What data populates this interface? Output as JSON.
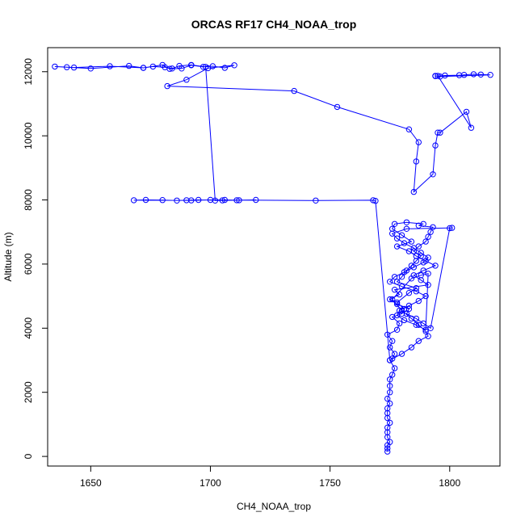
{
  "chart_data": {
    "type": "scatter",
    "title": "ORCAS RF17 CH4_NOAA_trop",
    "xlabel": "CH4_NOAA_trop",
    "ylabel": "Altitude (m)",
    "xlim": [
      1632,
      1821
    ],
    "ylim": [
      -300,
      12750
    ],
    "xticks": [
      1650,
      1700,
      1750,
      1800
    ],
    "yticks": [
      0,
      2000,
      4000,
      6000,
      8000,
      10000,
      12000
    ],
    "grid": false,
    "legend": "none",
    "color": "#0000ff",
    "marker": "open-circle",
    "connected": true,
    "series": [
      {
        "x": [
          1774,
          1774,
          1774,
          1775,
          1774,
          1774,
          1774,
          1775,
          1774,
          1774,
          1774,
          1775,
          1774,
          1775,
          1775,
          1775,
          1776,
          1777,
          1775,
          1776,
          1777,
          1775,
          1776,
          1774,
          1778,
          1779,
          1776,
          1780,
          1781,
          1778,
          1783,
          1786,
          1778,
          1780,
          1782,
          1784,
          1786,
          1788,
          1785,
          1787,
          1790,
          1791,
          1792,
          1793,
          1787,
          1789,
          1782,
          1777,
          1776,
          1780,
          1784,
          1778,
          1783,
          1786,
          1790,
          1794,
          1789,
          1785,
          1788,
          1791,
          1777,
          1779,
          1775,
          1778,
          1783,
          1782,
          1786,
          1789,
          1792,
          1800,
          1801,
          1782,
          1776,
          1778,
          1781,
          1785,
          1788,
          1791,
          1789,
          1785,
          1781,
          1777,
          1775,
          1780,
          1786,
          1790,
          1787,
          1783,
          1779,
          1778,
          1781,
          1786,
          1790,
          1791,
          1788,
          1784,
          1776,
          1780,
          1784,
          1787,
          1790,
          1791,
          1787,
          1784,
          1780,
          1775,
          1769,
          1768,
          1744,
          1700,
          1692,
          1668,
          1673,
          1680,
          1686,
          1690,
          1695,
          1705,
          1712,
          1719,
          1711,
          1706,
          1702,
          1698,
          1692,
          1687,
          1684,
          1681,
          1676,
          1672,
          1666,
          1650,
          1640,
          1635,
          1643,
          1658,
          1672,
          1680,
          1683,
          1688,
          1692,
          1697,
          1701,
          1706,
          1710,
          1699,
          1690,
          1682,
          1735,
          1753,
          1783,
          1787,
          1786,
          1785,
          1793,
          1794,
          1795,
          1796,
          1807,
          1809,
          1795,
          1794,
          1798,
          1804,
          1806,
          1810,
          1813,
          1817,
          1796,
          1794
        ],
        "y": [
          150,
          250,
          350,
          450,
          600,
          750,
          900,
          1050,
          1200,
          1350,
          1500,
          1650,
          1800,
          2000,
          2200,
          2400,
          2550,
          2750,
          3000,
          3050,
          3200,
          3400,
          3600,
          3800,
          3950,
          4150,
          4350,
          4450,
          4600,
          4800,
          5100,
          5250,
          5450,
          5600,
          5800,
          5950,
          6100,
          6250,
          6400,
          6550,
          6700,
          6850,
          7000,
          7150,
          7200,
          7250,
          7300,
          7250,
          7100,
          6900,
          6700,
          6550,
          6400,
          6250,
          6100,
          5950,
          5800,
          5650,
          5500,
          5350,
          5200,
          5050,
          4900,
          4750,
          4600,
          4450,
          4300,
          4150,
          4000,
          7120,
          7130,
          7100,
          6950,
          6800,
          6650,
          6500,
          6350,
          6200,
          6050,
          5900,
          5750,
          5600,
          5450,
          5300,
          5150,
          5000,
          4850,
          4700,
          4550,
          4400,
          4250,
          4100,
          3950,
          5700,
          5650,
          5550,
          4900,
          4550,
          4300,
          4100,
          3900,
          3750,
          3600,
          3400,
          3200,
          3000,
          7970,
          7990,
          7980,
          8000,
          7985,
          7990,
          8000,
          7995,
          7980,
          7990,
          8000,
          7985,
          7990,
          8000,
          7990,
          8000,
          7980,
          12150,
          12210,
          12180,
          12100,
          12140,
          12160,
          12120,
          12180,
          12100,
          12140,
          12160,
          12130,
          12170,
          12120,
          12210,
          12090,
          12100,
          12200,
          12150,
          12170,
          12120,
          12200,
          12110,
          11750,
          11550,
          11400,
          10900,
          10200,
          9800,
          9200,
          8250,
          8800,
          9700,
          10100,
          10100,
          10750,
          10250,
          11870,
          11860,
          11880,
          11890,
          11900,
          11920,
          11910,
          11900,
          11850,
          11870
        ]
      }
    ]
  }
}
